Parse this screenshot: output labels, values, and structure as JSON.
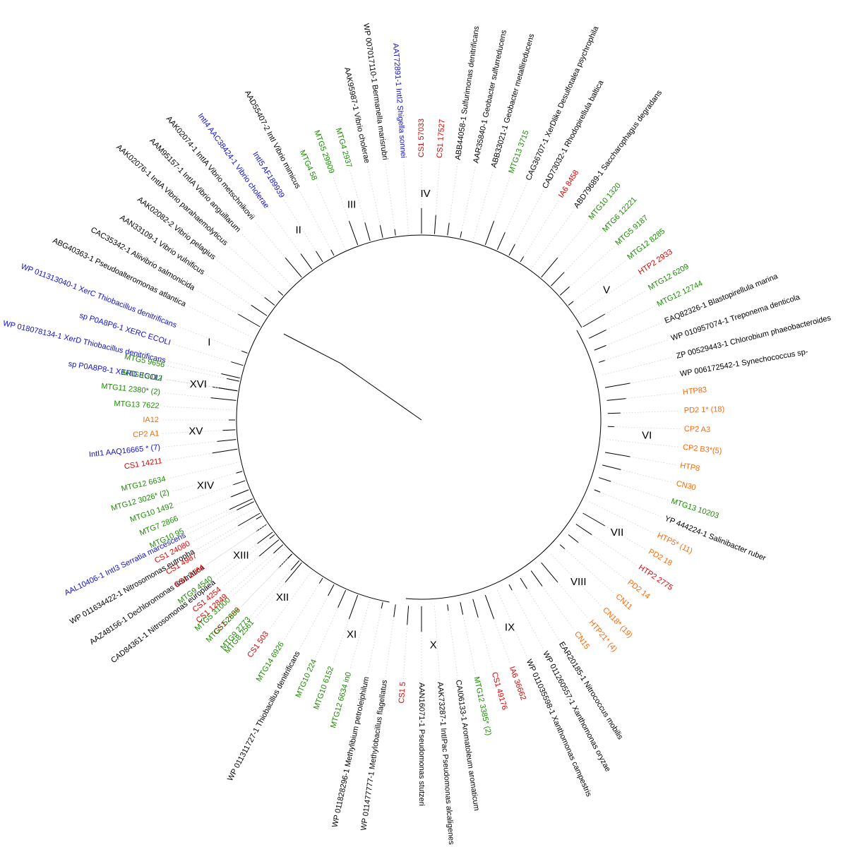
{
  "colors": {
    "reference": "#000000",
    "known_integrase": "#1010d0",
    "CS1": "#e00000",
    "IA6_HTP2": "#e00000",
    "MTG": "#1a8a00",
    "HTP_CP2_PD2_CN": "#ff6600"
  },
  "leaves": [
    {
      "label": "sp P0A8P8-1 XERD ECOLI",
      "color": "#1010d0",
      "angle": 189
    },
    {
      "label": "WP 018078134-1 XerD Thiobacillus denitrificans",
      "color": "#1010d0",
      "angle": 193
    },
    {
      "label": "sp P0A8P6-1 XERC ECOLI",
      "color": "#1010d0",
      "angle": 197
    },
    {
      "label": "WP 011313040-1 XerC Thiobacillus denitrificans",
      "color": "#1010d0",
      "angle": 201
    },
    {
      "label": "ABG40363-1 Pseudoalteromonas atlantica",
      "color": "#000000",
      "angle": 206
    },
    {
      "label": "CAC35342-1 Aliivibrio salmonicida",
      "color": "#000000",
      "angle": 210
    },
    {
      "label": "AAN33109-1 Vibrio vulnificus",
      "color": "#000000",
      "angle": 214
    },
    {
      "label": "AAK02082-2 Vibrio pelagius",
      "color": "#000000",
      "angle": 218
    },
    {
      "label": "AAK02076-1 IntIA Vibrio parahaemolyticus",
      "color": "#000000",
      "angle": 222
    },
    {
      "label": "AAM95157-1 IntIA Vibrio anguillarum",
      "color": "#000000",
      "angle": 226
    },
    {
      "label": "AAK02074-1 IntIA Vibrio metschnikovii",
      "color": "#000000",
      "angle": 230
    },
    {
      "label": "IntI4 AAC38424-1 Vibrio cholerae",
      "color": "#1010d0",
      "angle": 234
    },
    {
      "label": "IntI5 AF189939",
      "color": "#1010d0",
      "angle": 238
    },
    {
      "label": "AAD55407-2 IntI Vibrio mimicus",
      "color": "#000000",
      "angle": 242
    },
    {
      "label": "MTG4 58",
      "color": "#1a8a00",
      "angle": 246
    },
    {
      "label": "MTG5 29909",
      "color": "#1a8a00",
      "angle": 250
    },
    {
      "label": "MTG4 2937",
      "color": "#1a8a00",
      "angle": 254
    },
    {
      "label": "AAK95987-1 Vibrio cholerae",
      "color": "#000000",
      "angle": 258
    },
    {
      "label": "WP 007017110-1 Bermanella marisrubri",
      "color": "#000000",
      "angle": 262
    },
    {
      "label": "AAT72891-1 IntI2 Shigella sonnei",
      "color": "#1010d0",
      "angle": 266
    },
    {
      "label": "CS1 57033",
      "color": "#e00000",
      "angle": 270
    },
    {
      "label": "CS1 17527",
      "color": "#e00000",
      "angle": 274
    },
    {
      "label": "ABB44058-1 Sulfurimonas denitrificans",
      "color": "#000000",
      "angle": 278
    },
    {
      "label": "AAR35840-1 Geobacter sulfurreducens",
      "color": "#000000",
      "angle": 282
    },
    {
      "label": "ABB33021-1 Geobacter metallireducens",
      "color": "#000000",
      "angle": 286
    },
    {
      "label": "MTG13 3715",
      "color": "#1a8a00",
      "angle": 290
    },
    {
      "label": "CAG36707-1 XerDlike Desulfotalea psychrophila",
      "color": "#000000",
      "angle": 294
    },
    {
      "label": "CAD73032-1 Rhodopirellula baltica",
      "color": "#000000",
      "angle": 298
    },
    {
      "label": "IA6 8458",
      "color": "#e00000",
      "angle": 302
    },
    {
      "label": "ABD79689-1 Saccharophagus degradans",
      "color": "#000000",
      "angle": 306
    },
    {
      "label": "MTG10 1320",
      "color": "#1a8a00",
      "angle": 310
    },
    {
      "label": "MTG6 12221",
      "color": "#1a8a00",
      "angle": 314
    },
    {
      "label": "MTG5 9187",
      "color": "#1a8a00",
      "angle": 318
    },
    {
      "label": "MTG12 8285",
      "color": "#1a8a00",
      "angle": 322
    },
    {
      "label": "HTP2 2933",
      "color": "#e00000",
      "angle": 326
    },
    {
      "label": "MTG12 6209",
      "color": "#1a8a00",
      "angle": 330
    },
    {
      "label": "MTG12 12744",
      "color": "#1a8a00",
      "angle": 334
    },
    {
      "label": "EAQ82326-1 Blastopirellula marina",
      "color": "#000000",
      "angle": 338
    },
    {
      "label": "WP 010957074-1 Treponema denticola",
      "color": "#000000",
      "angle": 342
    },
    {
      "label": "ZP 00529443-1 Chlorobium phaeobacteroides",
      "color": "#000000",
      "angle": 346
    },
    {
      "label": "WP 006172542-1 Synechococcus sp-",
      "color": "#000000",
      "angle": 350
    },
    {
      "label": "HTP83",
      "color": "#ff6600",
      "angle": 354
    },
    {
      "label": "PD2 1* (18)",
      "color": "#ff6600",
      "angle": 358
    },
    {
      "label": "CP2 A3",
      "color": "#ff6600",
      "angle": 2
    },
    {
      "label": "CP2 B3*(5)",
      "color": "#ff6600",
      "angle": 6
    },
    {
      "label": "HTP8",
      "color": "#ff6600",
      "angle": 10
    },
    {
      "label": "CN30",
      "color": "#ff6600",
      "angle": 14
    },
    {
      "label": "MTG13 10203",
      "color": "#1a8a00",
      "angle": 18
    },
    {
      "label": "YP 444224-1 Salinibacter ruber",
      "color": "#000000",
      "angle": 22
    },
    {
      "label": "HTP5* (11)",
      "color": "#ff6600",
      "angle": 26
    },
    {
      "label": "PD2 18",
      "color": "#ff6600",
      "angle": 30
    },
    {
      "label": "HTP2 2775",
      "color": "#e00000",
      "angle": 34
    },
    {
      "label": "PD2 14",
      "color": "#ff6600",
      "angle": 38
    },
    {
      "label": "CN11",
      "color": "#ff6600",
      "angle": 42
    },
    {
      "label": "CN18* (19)",
      "color": "#ff6600",
      "angle": 46
    },
    {
      "label": "HTP21* (4)",
      "color": "#ff6600",
      "angle": 50
    },
    {
      "label": "CN15",
      "color": "#ff6600",
      "angle": 54
    },
    {
      "label": "EAR20185-1 Nitrococcus mobilis",
      "color": "#000000",
      "angle": 58
    },
    {
      "label": "WP 011260557-1 Xanthomonas oryzae",
      "color": "#000000",
      "angle": 62
    },
    {
      "label": "WP 011035598-1 Xanthomonas campestris",
      "color": "#000000",
      "angle": 66
    },
    {
      "label": "IA6 36662",
      "color": "#e00000",
      "angle": 70
    },
    {
      "label": "CS1 49176",
      "color": "#e00000",
      "angle": 74
    },
    {
      "label": "MTG12 3385* (2)",
      "color": "#1a8a00",
      "angle": 78
    },
    {
      "label": "CAI06133-1 Aromatoleum aromaticum",
      "color": "#000000",
      "angle": 82
    },
    {
      "label": "AAK73287-1 IntIPac Pseudomonas alcaligenes",
      "color": "#000000",
      "angle": 86
    },
    {
      "label": "AAN16071-1 Pseudomonas stutzeri",
      "color": "#000000",
      "angle": 90
    },
    {
      "label": "CS1 5",
      "color": "#e00000",
      "angle": 94
    },
    {
      "label": "WP 011477777-1 Methylobacillus flagellatus",
      "color": "#000000",
      "angle": 98
    },
    {
      "label": "WP 011828296-1 Methylibium petroleiphilum",
      "color": "#000000",
      "angle": 102
    },
    {
      "label": "MTG12 6634 in0",
      "color": "#1a8a00",
      "angle": 106
    },
    {
      "label": "MTG10 6152",
      "color": "#1a8a00",
      "angle": 110
    },
    {
      "label": "MTG10 224",
      "color": "#1a8a00",
      "angle": 114
    },
    {
      "label": "WP 011311727-1 Thiobacillus denitrificans",
      "color": "#000000",
      "angle": 118
    },
    {
      "label": "MTG14 6926",
      "color": "#1a8a00",
      "angle": 122
    },
    {
      "label": "CS1 503",
      "color": "#e00000",
      "angle": 126
    },
    {
      "label": "MTG8 2561",
      "color": "#1a8a00",
      "angle": 130
    },
    {
      "label": "CS1 2689",
      "color": "#e00000",
      "angle": 134
    },
    {
      "label": "CS1 12849",
      "color": "#e00000",
      "angle": 138
    },
    {
      "label": "CAD84361-1 Nitrosomonas europaea",
      "color": "#000000",
      "angle": 142
    },
    {
      "label": "AAZ48156-1 Dechloromonas aromatica",
      "color": "#000000",
      "angle": 146
    },
    {
      "label": "WP 011634422-1 Nitrosomonas eutropha",
      "color": "#000000",
      "angle": 150
    },
    {
      "label": "AAL10406-1 IntI3 Serratia marcescens",
      "color": "#1010d0",
      "angle": 154
    },
    {
      "label": "MTG9 2773",
      "color": "#1a8a00",
      "angle": 131
    },
    {
      "label": "MTG5 52806",
      "color": "#1a8a00",
      "angle": 134
    },
    {
      "label": "MTG5 31000",
      "color": "#1a8a00",
      "angle": 137
    },
    {
      "label": "CS1 4254",
      "color": "#e00000",
      "angle": 140
    },
    {
      "label": "MTG9 4540",
      "color": "#1a8a00",
      "angle": 143
    },
    {
      "label": "CS1 2164",
      "color": "#e00000",
      "angle": 146
    },
    {
      "label": "CS1 4987",
      "color": "#e00000",
      "angle": 149
    },
    {
      "label": "CS1 24080",
      "color": "#e00000",
      "angle": 152
    },
    {
      "label": "MTG10 95",
      "color": "#1a8a00",
      "angle": 155
    },
    {
      "label": "MTG7 2866",
      "color": "#1a8a00",
      "angle": 158
    },
    {
      "label": "MTG10 1492",
      "color": "#1a8a00",
      "angle": 161
    },
    {
      "label": "MTG12 3026* (2)",
      "color": "#1a8a00",
      "angle": 164
    },
    {
      "label": "MTG12 6634",
      "color": "#1a8a00",
      "angle": 167
    },
    {
      "label": "CS1 14211",
      "color": "#e00000",
      "angle": 171
    },
    {
      "label": "IntI1 AAQ16665 * (7)",
      "color": "#1010d0",
      "angle": 174
    },
    {
      "label": "CP2 A1",
      "color": "#ff6600",
      "angle": 177
    },
    {
      "label": "IA12",
      "color": "#ff6600",
      "angle": 180
    },
    {
      "label": "MTG13 7622",
      "color": "#1a8a00",
      "angle": 183
    },
    {
      "label": "MTG11 2380* (2)",
      "color": "#1a8a00",
      "angle": 186
    },
    {
      "label": "MTG8 3112",
      "color": "#1a8a00",
      "angle": 189
    },
    {
      "label": "MTG5 9656",
      "color": "#1a8a00",
      "angle": 192
    }
  ],
  "clades": [
    {
      "label": "I",
      "angle": 200
    },
    {
      "label": "II",
      "angle": 237
    },
    {
      "label": "III",
      "angle": 252
    },
    {
      "label": "IV",
      "angle": 271
    },
    {
      "label": "V",
      "angle": 325
    },
    {
      "label": "VI",
      "angle": 4
    },
    {
      "label": "VII",
      "angle": 30
    },
    {
      "label": "VIII",
      "angle": 46
    },
    {
      "label": "IX",
      "angle": 67
    },
    {
      "label": "X",
      "angle": 87
    },
    {
      "label": "XI",
      "angle": 108
    },
    {
      "label": "XII",
      "angle": 128
    },
    {
      "label": "XIII",
      "angle": 143
    },
    {
      "label": "XIV",
      "angle": 163
    },
    {
      "label": "XV",
      "angle": 177
    },
    {
      "label": "XVI",
      "angle": 189
    }
  ]
}
